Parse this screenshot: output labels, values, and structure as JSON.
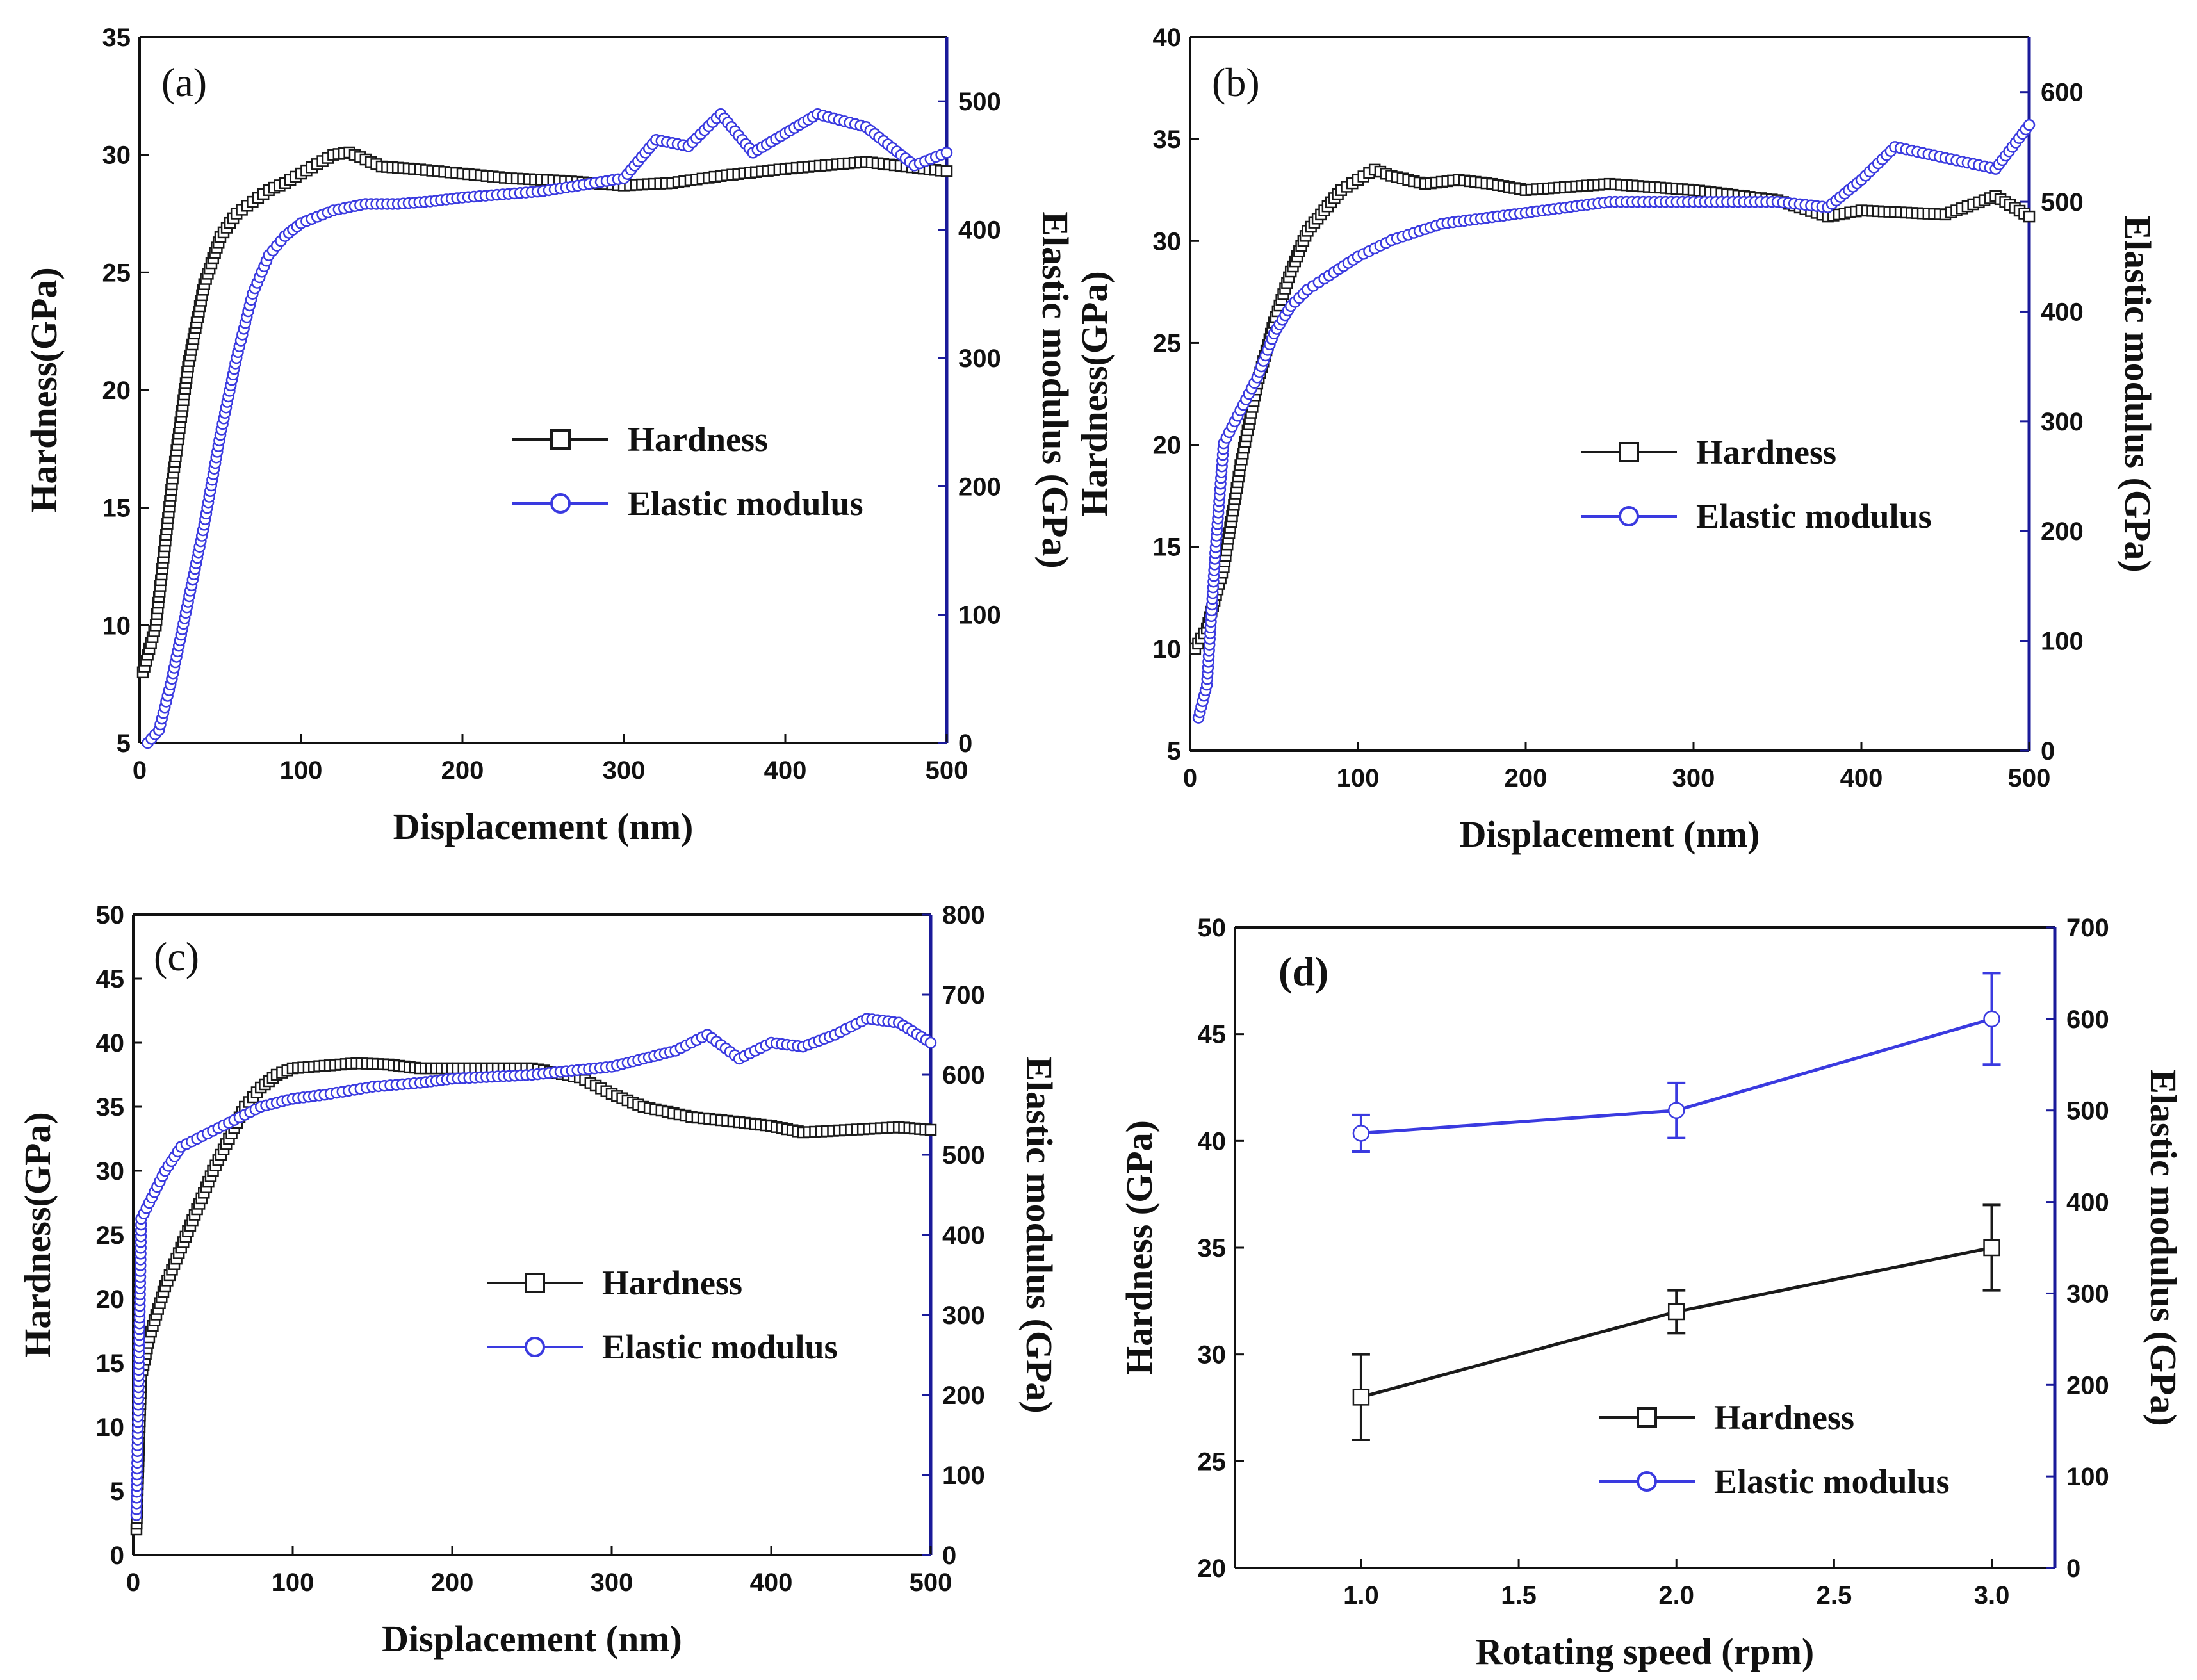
{
  "colors": {
    "hardness": "#1a1a1a",
    "modulus": "#3a3ae0",
    "right_axis": "#1a1a9a"
  },
  "chart_data": [
    {
      "type": "line",
      "panel_label": "(a)",
      "xlabel": "Displacement (nm)",
      "ylabel": "Hardness(GPa)",
      "y2label": "Elastic modulus (GPa)",
      "xlim": [
        0,
        500
      ],
      "ylim": [
        5,
        35
      ],
      "y2lim": [
        0,
        550
      ],
      "xticks": [
        "0",
        "100",
        "200",
        "300",
        "400",
        "500"
      ],
      "yticks": [
        "5",
        "10",
        "15",
        "20",
        "25",
        "30",
        "35"
      ],
      "y2ticks": [
        "0",
        "100",
        "200",
        "300",
        "400",
        "500"
      ],
      "legend": [
        "Hardness",
        "Elastic modulus"
      ],
      "series": [
        {
          "name": "Hardness",
          "axis": "left",
          "marker": "square",
          "x": [
            2,
            10,
            20,
            30,
            40,
            50,
            60,
            70,
            80,
            90,
            100,
            110,
            120,
            130,
            140,
            150,
            170,
            200,
            230,
            260,
            300,
            330,
            360,
            400,
            450,
            500
          ],
          "y": [
            8,
            10,
            16,
            21,
            24.5,
            26.5,
            27.5,
            28,
            28.5,
            28.8,
            29.2,
            29.6,
            30,
            30.1,
            29.8,
            29.5,
            29.4,
            29.2,
            29,
            28.9,
            28.7,
            28.8,
            29.1,
            29.4,
            29.7,
            29.3
          ]
        },
        {
          "name": "Elastic modulus",
          "axis": "right",
          "marker": "circle",
          "x": [
            5,
            12,
            20,
            30,
            40,
            50,
            60,
            70,
            80,
            90,
            100,
            120,
            140,
            160,
            180,
            200,
            250,
            300,
            320,
            340,
            360,
            380,
            400,
            420,
            450,
            480,
            500
          ],
          "y": [
            0,
            10,
            50,
            110,
            170,
            240,
            300,
            350,
            380,
            395,
            405,
            415,
            420,
            420,
            422,
            425,
            430,
            440,
            470,
            465,
            490,
            460,
            475,
            490,
            480,
            450,
            460
          ]
        }
      ]
    },
    {
      "type": "line",
      "panel_label": "(b)",
      "xlabel": "Displacement (nm)",
      "ylabel": "Hardness(GPa)",
      "y2label": "Elastic modulus (GPa)",
      "xlim": [
        0,
        500
      ],
      "ylim": [
        5,
        40
      ],
      "y2lim": [
        0,
        650
      ],
      "xticks": [
        "0",
        "100",
        "200",
        "300",
        "400",
        "500"
      ],
      "yticks": [
        "5",
        "10",
        "15",
        "20",
        "25",
        "30",
        "35",
        "40"
      ],
      "y2ticks": [
        "0",
        "100",
        "200",
        "300",
        "400",
        "500",
        "600"
      ],
      "legend": [
        "Hardness",
        "Elastic modulus"
      ],
      "series": [
        {
          "name": "Hardness",
          "axis": "left",
          "marker": "square",
          "x": [
            3,
            10,
            20,
            30,
            40,
            50,
            60,
            70,
            80,
            90,
            100,
            110,
            120,
            140,
            160,
            180,
            200,
            250,
            300,
            350,
            380,
            400,
            450,
            480,
            500
          ],
          "y": [
            10,
            11,
            14,
            19,
            23,
            26,
            28.5,
            30.5,
            31.5,
            32.5,
            33,
            33.5,
            33.2,
            32.8,
            33,
            32.8,
            32.5,
            32.8,
            32.5,
            32,
            31.2,
            31.5,
            31.3,
            32.2,
            31.2
          ]
        },
        {
          "name": "Elastic modulus",
          "axis": "right",
          "marker": "circle",
          "x": [
            5,
            10,
            15,
            20,
            30,
            40,
            50,
            60,
            70,
            80,
            100,
            120,
            150,
            200,
            250,
            300,
            350,
            380,
            400,
            420,
            450,
            480,
            500
          ],
          "y": [
            30,
            60,
            180,
            280,
            310,
            340,
            380,
            405,
            420,
            430,
            450,
            465,
            480,
            490,
            500,
            500,
            500,
            495,
            520,
            550,
            540,
            530,
            570
          ]
        }
      ]
    },
    {
      "type": "line",
      "panel_label": "(c)",
      "xlabel": "Displacement (nm)",
      "ylabel": "Hardness(GPa)",
      "y2label": "Elastic modulus (GPa)",
      "xlim": [
        0,
        500
      ],
      "ylim": [
        0,
        50
      ],
      "y2lim": [
        0,
        800
      ],
      "xticks": [
        "0",
        "100",
        "200",
        "300",
        "400",
        "500"
      ],
      "yticks": [
        "0",
        "5",
        "10",
        "15",
        "20",
        "25",
        "30",
        "35",
        "40",
        "45",
        "50"
      ],
      "y2ticks": [
        "0",
        "100",
        "200",
        "300",
        "400",
        "500",
        "600",
        "700",
        "800"
      ],
      "legend": [
        "Hardness",
        "Elastic modulus"
      ],
      "series": [
        {
          "name": "Hardness",
          "axis": "left",
          "marker": "square",
          "x": [
            2,
            5,
            10,
            20,
            30,
            40,
            50,
            60,
            70,
            80,
            90,
            100,
            120,
            140,
            160,
            180,
            200,
            250,
            280,
            300,
            320,
            350,
            380,
            400,
            420,
            450,
            480,
            500
          ],
          "y": [
            2,
            14,
            17,
            21,
            24,
            27,
            30,
            32.5,
            35,
            36.5,
            37.5,
            38,
            38.2,
            38.4,
            38.3,
            38,
            38,
            38,
            37.3,
            36,
            35,
            34.2,
            33.8,
            33.5,
            33,
            33.2,
            33.4,
            33.2
          ]
        },
        {
          "name": "Elastic modulus",
          "axis": "right",
          "marker": "circle",
          "x": [
            2,
            5,
            10,
            20,
            30,
            40,
            60,
            80,
            100,
            120,
            150,
            180,
            200,
            250,
            300,
            320,
            340,
            360,
            380,
            400,
            420,
            440,
            460,
            480,
            500
          ],
          "y": [
            50,
            420,
            440,
            480,
            510,
            520,
            540,
            560,
            570,
            575,
            585,
            590,
            595,
            600,
            610,
            620,
            630,
            650,
            620,
            640,
            635,
            650,
            670,
            665,
            640
          ]
        }
      ]
    },
    {
      "type": "line",
      "panel_label": "(d)",
      "xlabel": "Rotating speed (rpm)",
      "ylabel": "Hardness (GPa)",
      "y2label": "Elastic modulus (GPa)",
      "xlim": [
        0.6,
        3.2
      ],
      "ylim": [
        20,
        50
      ],
      "y2lim": [
        0,
        700
      ],
      "xticks": [
        "1.0",
        "1.5",
        "2.0",
        "2.5",
        "3.0"
      ],
      "yticks": [
        "20",
        "25",
        "30",
        "35",
        "40",
        "45",
        "50"
      ],
      "y2ticks": [
        "0",
        "100",
        "200",
        "300",
        "400",
        "500",
        "600",
        "700"
      ],
      "legend": [
        "Hardness",
        "Elastic modulus"
      ],
      "series": [
        {
          "name": "Hardness",
          "axis": "left",
          "marker": "square",
          "x": [
            1.0,
            2.0,
            3.0
          ],
          "y": [
            28,
            32,
            35
          ],
          "err": [
            2,
            1,
            2
          ]
        },
        {
          "name": "Elastic modulus",
          "axis": "right",
          "marker": "circle",
          "x": [
            1.0,
            2.0,
            3.0
          ],
          "y": [
            475,
            500,
            600
          ],
          "err": [
            20,
            30,
            50
          ]
        }
      ]
    }
  ]
}
